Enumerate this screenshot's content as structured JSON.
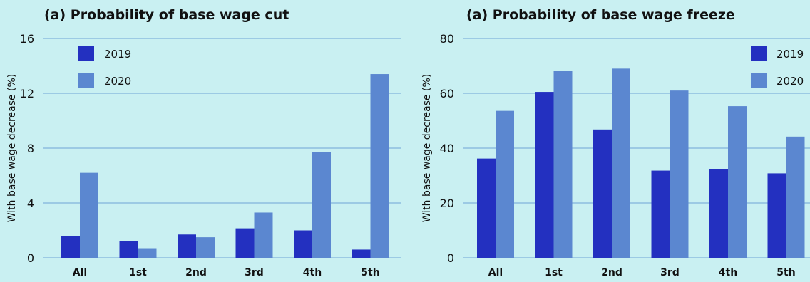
{
  "chart_data": [
    {
      "type": "bar",
      "title": "(a) Probability of base wage cut",
      "ylabel": "With base wage decrease (%)",
      "xlabel": "",
      "categories": [
        "All",
        "1st",
        "2nd",
        "3rd",
        "4th",
        "5th"
      ],
      "ylim": [
        0,
        16
      ],
      "yticks": [
        0,
        4,
        8,
        12,
        16
      ],
      "grid": true,
      "legend_position": "top-left",
      "series": [
        {
          "name": "2019",
          "color": "#2330c0",
          "values": [
            1.6,
            1.2,
            1.7,
            2.15,
            2.0,
            0.6
          ]
        },
        {
          "name": "2020",
          "color": "#5b87d0",
          "values": [
            6.2,
            0.7,
            1.5,
            3.3,
            7.7,
            13.4
          ]
        }
      ]
    },
    {
      "type": "bar",
      "title": "(a) Probability of base wage freeze",
      "ylabel": "With base wage decrease (%)",
      "xlabel": "",
      "categories": [
        "All",
        "1st",
        "2nd",
        "3rd",
        "4th",
        "5th"
      ],
      "ylim": [
        0,
        80
      ],
      "yticks": [
        0,
        20,
        40,
        60,
        80
      ],
      "grid": true,
      "legend_position": "top-right",
      "series": [
        {
          "name": "2019",
          "color": "#2330c0",
          "values": [
            36.2,
            60.5,
            46.8,
            31.8,
            32.3,
            30.8
          ]
        },
        {
          "name": "2020",
          "color": "#5b87d0",
          "values": [
            53.6,
            68.3,
            69.0,
            61.0,
            55.3,
            44.2
          ]
        }
      ]
    }
  ]
}
